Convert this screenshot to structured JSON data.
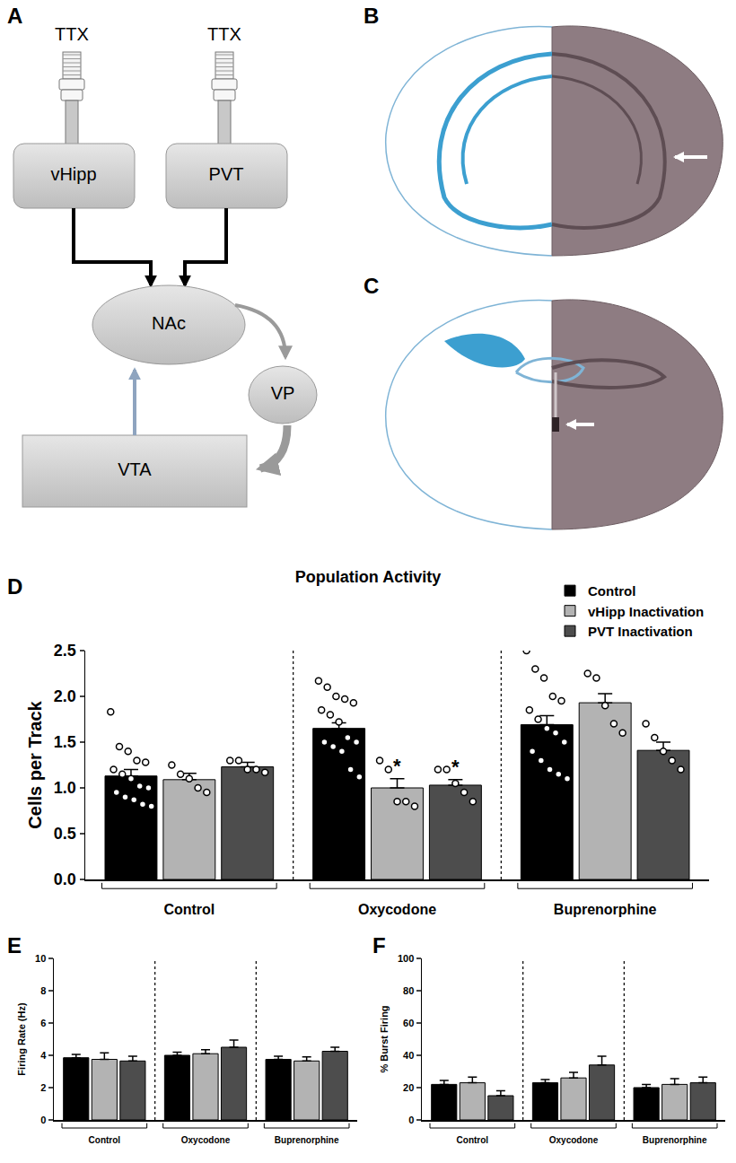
{
  "panel_labels": [
    "A",
    "B",
    "C",
    "D",
    "E",
    "F"
  ],
  "diagram": {
    "infusions": [
      {
        "label": "TTX",
        "target": "vHipp"
      },
      {
        "label": "TTX",
        "target": "PVT"
      }
    ],
    "nodes": [
      {
        "label": "vHipp"
      },
      {
        "label": "PVT"
      },
      {
        "label": "NAc"
      },
      {
        "label": "VP"
      },
      {
        "label": "VTA"
      }
    ]
  },
  "chart_data": [
    {
      "type": "bar",
      "title": "Population Activity",
      "y_label": "Cells per Track",
      "categories": [
        "Control",
        "Oxycodone",
        "Buprenorphine"
      ],
      "ylim": [
        0,
        2.5
      ],
      "yticks": [
        {
          "value": 0,
          "label": "0.0"
        },
        0.5,
        {
          "value": 1,
          "label": "1.0"
        },
        1.5,
        {
          "value": 2,
          "label": "2.0"
        },
        2.5
      ],
      "legend": "top right",
      "series": [
        {
          "name": "Control",
          "color": "#000000",
          "values": [
            1.13,
            1.65,
            1.69
          ],
          "error": [
            0.07,
            0.06,
            0.1
          ],
          "points": [
            [
              1.83,
              1.45,
              1.4,
              1.3,
              1.28,
              1.2,
              1.15,
              1.1,
              1.02,
              1.0,
              0.95,
              0.9,
              0.87,
              0.82,
              0.8
            ],
            [
              2.17,
              2.1,
              2.0,
              1.97,
              1.93,
              1.85,
              1.8,
              1.72,
              1.55,
              1.5,
              1.5,
              1.45,
              1.4,
              1.2,
              1.12
            ],
            [
              2.5,
              2.3,
              2.2,
              2.0,
              1.95,
              1.85,
              1.75,
              1.65,
              1.6,
              1.5,
              1.4,
              1.3,
              1.2,
              1.15,
              1.1
            ]
          ]
        },
        {
          "name": "vHipp Inactivation",
          "color": "#b3b3b3",
          "values": [
            1.09,
            1.0,
            1.93
          ],
          "error": [
            0.07,
            0.1,
            0.1
          ],
          "points": [
            [
              1.25,
              1.15,
              1.1,
              1.0,
              0.95
            ],
            [
              1.3,
              1.2,
              0.85,
              0.85,
              0.8
            ],
            [
              2.25,
              2.2,
              1.9,
              1.7,
              1.6
            ]
          ]
        },
        {
          "name": "PVT Inactivation",
          "color": "#4d4d4d",
          "values": [
            1.23,
            1.03,
            1.41
          ],
          "error": [
            0.05,
            0.06,
            0.09
          ],
          "points": [
            [
              1.3,
              1.3,
              1.2,
              1.2,
              1.17
            ],
            [
              1.2,
              1.2,
              1.05,
              0.95,
              0.85
            ],
            [
              1.7,
              1.55,
              1.4,
              1.3,
              1.2
            ]
          ]
        }
      ],
      "annotations": [
        {
          "category": "Oxycodone",
          "series": "vHipp Inactivation",
          "text": "*"
        },
        {
          "category": "Oxycodone",
          "series": "PVT Inactivation",
          "text": "*"
        }
      ]
    },
    {
      "type": "bar",
      "y_label": "Firing Rate (Hz)",
      "categories": [
        "Control",
        "Oxycodone",
        "Buprenorphine"
      ],
      "ylim": [
        0,
        10
      ],
      "yticks": [
        0,
        2,
        4,
        6,
        8,
        10
      ],
      "series": [
        {
          "name": "Control",
          "color": "#000000",
          "values": [
            3.85,
            4.0,
            3.75
          ],
          "error": [
            0.2,
            0.2,
            0.2
          ]
        },
        {
          "name": "vHipp Inactivation",
          "color": "#b3b3b3",
          "values": [
            3.75,
            4.1,
            3.65
          ],
          "error": [
            0.4,
            0.25,
            0.25
          ]
        },
        {
          "name": "PVT Inactivation",
          "color": "#4d4d4d",
          "values": [
            3.65,
            4.5,
            4.25
          ],
          "error": [
            0.3,
            0.45,
            0.25
          ]
        }
      ]
    },
    {
      "type": "bar",
      "y_label": "% Burst Firing",
      "categories": [
        "Control",
        "Oxycodone",
        "Buprenorphine"
      ],
      "ylim": [
        0,
        100
      ],
      "yticks": [
        0,
        20,
        40,
        60,
        80,
        100
      ],
      "series": [
        {
          "name": "Control",
          "color": "#000000",
          "values": [
            22,
            23,
            20
          ],
          "error": [
            2.5,
            2,
            2
          ]
        },
        {
          "name": "vHipp Inactivation",
          "color": "#b3b3b3",
          "values": [
            23,
            26,
            22
          ],
          "error": [
            3.5,
            3.5,
            3.5
          ]
        },
        {
          "name": "PVT Inactivation",
          "color": "#4d4d4d",
          "values": [
            15,
            34,
            23
          ],
          "error": [
            3,
            5.5,
            3.5
          ]
        }
      ]
    }
  ]
}
